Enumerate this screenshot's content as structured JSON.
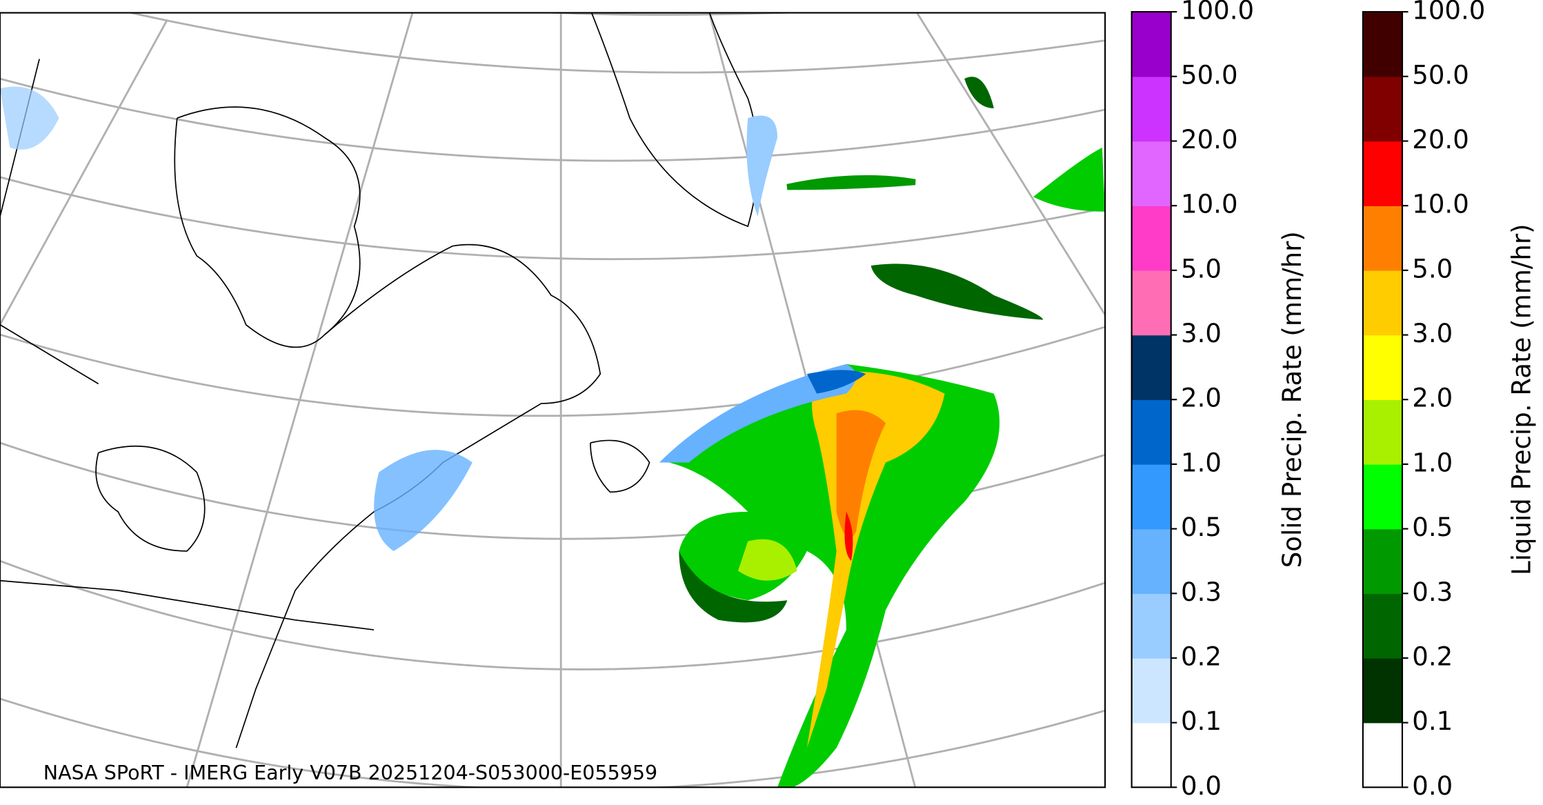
{
  "map": {
    "credit": "NASA SPoRT - IMERG Early V07B 20251204-S053000-E055959"
  },
  "colorbars": [
    {
      "label": "Solid Precip. Rate (mm/hr)",
      "ticks": [
        "0.0",
        "0.1",
        "0.2",
        "0.3",
        "0.5",
        "1.0",
        "2.0",
        "3.0",
        "5.0",
        "10.0",
        "20.0",
        "50.0",
        "100.0"
      ],
      "colors": [
        "#ffffff",
        "#cce6ff",
        "#99ccff",
        "#66b2ff",
        "#3399ff",
        "#0066cc",
        "#003366",
        "#ff6eb4",
        "#ff3cc8",
        "#e066ff",
        "#cc33ff",
        "#9900cc"
      ]
    },
    {
      "label": "Liquid Precip. Rate (mm/hr)",
      "ticks": [
        "0.0",
        "0.1",
        "0.2",
        "0.3",
        "0.5",
        "1.0",
        "2.0",
        "3.0",
        "5.0",
        "10.0",
        "20.0",
        "50.0",
        "100.0"
      ],
      "colors": [
        "#ffffff",
        "#003300",
        "#006600",
        "#009900",
        "#00ff00",
        "#a8f000",
        "#ffff00",
        "#ffcc00",
        "#ff8000",
        "#ff0000",
        "#800000",
        "#400000"
      ]
    }
  ]
}
